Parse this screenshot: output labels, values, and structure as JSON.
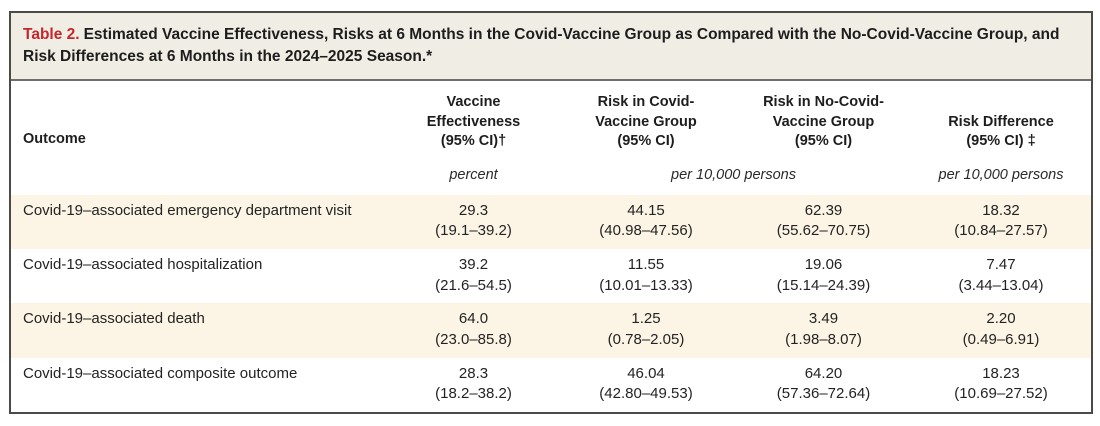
{
  "title": {
    "label": "Table 2.",
    "text": "Estimated Vaccine Effectiveness, Risks at 6 Months in the Covid-Vaccine Group as Compared with the No-Covid-Vaccine Group, and Risk Differences at 6 Months in the 2024–2025 Season.*"
  },
  "columns": {
    "outcome": "Outcome",
    "vaccine_effectiveness": "Vaccine\nEffectiveness\n(95% CI)†",
    "risk_covid": "Risk in Covid-\nVaccine Group\n(95% CI)",
    "risk_no_covid": "Risk in No-Covid-\nVaccine Group\n(95% CI)",
    "risk_difference": "Risk Difference\n(95% CI) ‡"
  },
  "units": {
    "vaccine_effectiveness": "percent",
    "risk_groups": "per 10,000 persons",
    "risk_difference": "per 10,000 persons"
  },
  "colors": {
    "accent_red": "#c5262c",
    "row_shade": "#fcf5e6",
    "title_bar_bg": "#f0ede4",
    "frame_border": "#4a4a48"
  },
  "rows": [
    {
      "outcome": "Covid-19–associated emergency department visit",
      "ve": "29.3",
      "ve_ci": "(19.1–39.2)",
      "risk_covid": "44.15",
      "risk_covid_ci": "(40.98–47.56)",
      "risk_no_covid": "62.39",
      "risk_no_covid_ci": "(55.62–70.75)",
      "diff": "18.32",
      "diff_ci": "(10.84–27.57)"
    },
    {
      "outcome": "Covid-19–associated hospitalization",
      "ve": "39.2",
      "ve_ci": "(21.6–54.5)",
      "risk_covid": "11.55",
      "risk_covid_ci": "(10.01–13.33)",
      "risk_no_covid": "19.06",
      "risk_no_covid_ci": "(15.14–24.39)",
      "diff": "7.47",
      "diff_ci": "(3.44–13.04)"
    },
    {
      "outcome": "Covid-19–associated death",
      "ve": "64.0",
      "ve_ci": "(23.0–85.8)",
      "risk_covid": "1.25",
      "risk_covid_ci": "(0.78–2.05)",
      "risk_no_covid": "3.49",
      "risk_no_covid_ci": "(1.98–8.07)",
      "diff": "2.20",
      "diff_ci": "(0.49–6.91)"
    },
    {
      "outcome": "Covid-19–associated composite outcome",
      "ve": "28.3",
      "ve_ci": "(18.2–38.2)",
      "risk_covid": "46.04",
      "risk_covid_ci": "(42.80–49.53)",
      "risk_no_covid": "64.20",
      "risk_no_covid_ci": "(57.36–72.64)",
      "diff": "18.23",
      "diff_ci": "(10.69–27.52)"
    }
  ]
}
